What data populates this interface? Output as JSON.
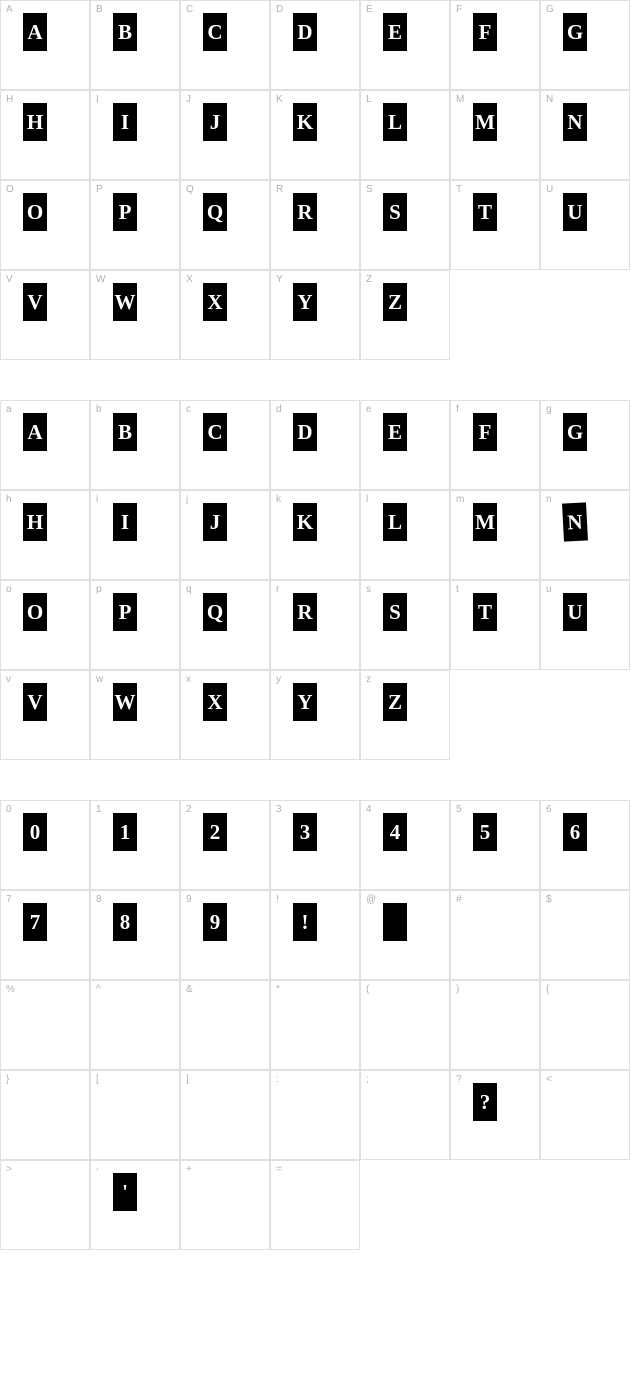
{
  "cell_border_color": "#e0e0e0",
  "label_color": "#b0b0b0",
  "glyph_bg": "#000000",
  "glyph_fg": "#ffffff",
  "glyph_box": {
    "width": 24,
    "height": 38
  },
  "cell_size": 90,
  "cols": 7,
  "label_fontsize": 10,
  "glyph_fontsize": 21,
  "groups": [
    {
      "name": "uppercase",
      "cells": [
        {
          "label": "A",
          "glyph": "A"
        },
        {
          "label": "B",
          "glyph": "B"
        },
        {
          "label": "C",
          "glyph": "C"
        },
        {
          "label": "D",
          "glyph": "D"
        },
        {
          "label": "E",
          "glyph": "E"
        },
        {
          "label": "F",
          "glyph": "F"
        },
        {
          "label": "G",
          "glyph": "G"
        },
        {
          "label": "H",
          "glyph": "H"
        },
        {
          "label": "I",
          "glyph": "I"
        },
        {
          "label": "J",
          "glyph": "J"
        },
        {
          "label": "K",
          "glyph": "K"
        },
        {
          "label": "L",
          "glyph": "L"
        },
        {
          "label": "M",
          "glyph": "M"
        },
        {
          "label": "N",
          "glyph": "N"
        },
        {
          "label": "O",
          "glyph": "O"
        },
        {
          "label": "P",
          "glyph": "P"
        },
        {
          "label": "Q",
          "glyph": "Q"
        },
        {
          "label": "R",
          "glyph": "R"
        },
        {
          "label": "S",
          "glyph": "S"
        },
        {
          "label": "T",
          "glyph": "T"
        },
        {
          "label": "U",
          "glyph": "U"
        },
        {
          "label": "V",
          "glyph": "V"
        },
        {
          "label": "W",
          "glyph": "W"
        },
        {
          "label": "X",
          "glyph": "X"
        },
        {
          "label": "Y",
          "glyph": "Y"
        },
        {
          "label": "Z",
          "glyph": "Z"
        }
      ]
    },
    {
      "name": "lowercase",
      "cells": [
        {
          "label": "a",
          "glyph": "A"
        },
        {
          "label": "b",
          "glyph": "B"
        },
        {
          "label": "c",
          "glyph": "C"
        },
        {
          "label": "d",
          "glyph": "D"
        },
        {
          "label": "e",
          "glyph": "E"
        },
        {
          "label": "f",
          "glyph": "F"
        },
        {
          "label": "g",
          "glyph": "G"
        },
        {
          "label": "h",
          "glyph": "H"
        },
        {
          "label": "i",
          "glyph": "I"
        },
        {
          "label": "j",
          "glyph": "J"
        },
        {
          "label": "k",
          "glyph": "K"
        },
        {
          "label": "l",
          "glyph": "L"
        },
        {
          "label": "m",
          "glyph": "M"
        },
        {
          "label": "n",
          "glyph": "N",
          "rot": true
        },
        {
          "label": "o",
          "glyph": "O"
        },
        {
          "label": "p",
          "glyph": "P"
        },
        {
          "label": "q",
          "glyph": "Q"
        },
        {
          "label": "r",
          "glyph": "R"
        },
        {
          "label": "s",
          "glyph": "S"
        },
        {
          "label": "t",
          "glyph": "T"
        },
        {
          "label": "u",
          "glyph": "U"
        },
        {
          "label": "v",
          "glyph": "V"
        },
        {
          "label": "w",
          "glyph": "W"
        },
        {
          "label": "x",
          "glyph": "X"
        },
        {
          "label": "y",
          "glyph": "Y"
        },
        {
          "label": "z",
          "glyph": "Z"
        }
      ]
    },
    {
      "name": "symbols",
      "cells": [
        {
          "label": "0",
          "glyph": "0"
        },
        {
          "label": "1",
          "glyph": "1"
        },
        {
          "label": "2",
          "glyph": "2"
        },
        {
          "label": "3",
          "glyph": "3"
        },
        {
          "label": "4",
          "glyph": "4"
        },
        {
          "label": "5",
          "glyph": "5"
        },
        {
          "label": "6",
          "glyph": "6"
        },
        {
          "label": "7",
          "glyph": "7"
        },
        {
          "label": "8",
          "glyph": "8"
        },
        {
          "label": "9",
          "glyph": "9"
        },
        {
          "label": "!",
          "glyph": "!"
        },
        {
          "label": "@",
          "glyph": "",
          "solid": true
        },
        {
          "label": "#",
          "glyph": "",
          "blank": true
        },
        {
          "label": "$",
          "glyph": "",
          "blank": true
        },
        {
          "label": "%",
          "glyph": "",
          "blank": true
        },
        {
          "label": "^",
          "glyph": "",
          "blank": true
        },
        {
          "label": "&",
          "glyph": "",
          "blank": true
        },
        {
          "label": "*",
          "glyph": "",
          "blank": true
        },
        {
          "label": "(",
          "glyph": "",
          "blank": true
        },
        {
          "label": ")",
          "glyph": "",
          "blank": true
        },
        {
          "label": "{",
          "glyph": "",
          "blank": true
        },
        {
          "label": "}",
          "glyph": "",
          "blank": true
        },
        {
          "label": "[",
          "glyph": "",
          "blank": true
        },
        {
          "label": "]",
          "glyph": "",
          "blank": true
        },
        {
          "label": ":",
          "glyph": "",
          "blank": true
        },
        {
          "label": ";",
          "glyph": "",
          "blank": true
        },
        {
          "label": "?",
          "glyph": "?"
        },
        {
          "label": "<",
          "glyph": "",
          "blank": true
        },
        {
          "label": ">",
          "glyph": "",
          "blank": true
        },
        {
          "label": "-",
          "glyph": "'"
        },
        {
          "label": "+",
          "glyph": "",
          "blank": true
        },
        {
          "label": "=",
          "glyph": "",
          "blank": true
        }
      ]
    }
  ]
}
